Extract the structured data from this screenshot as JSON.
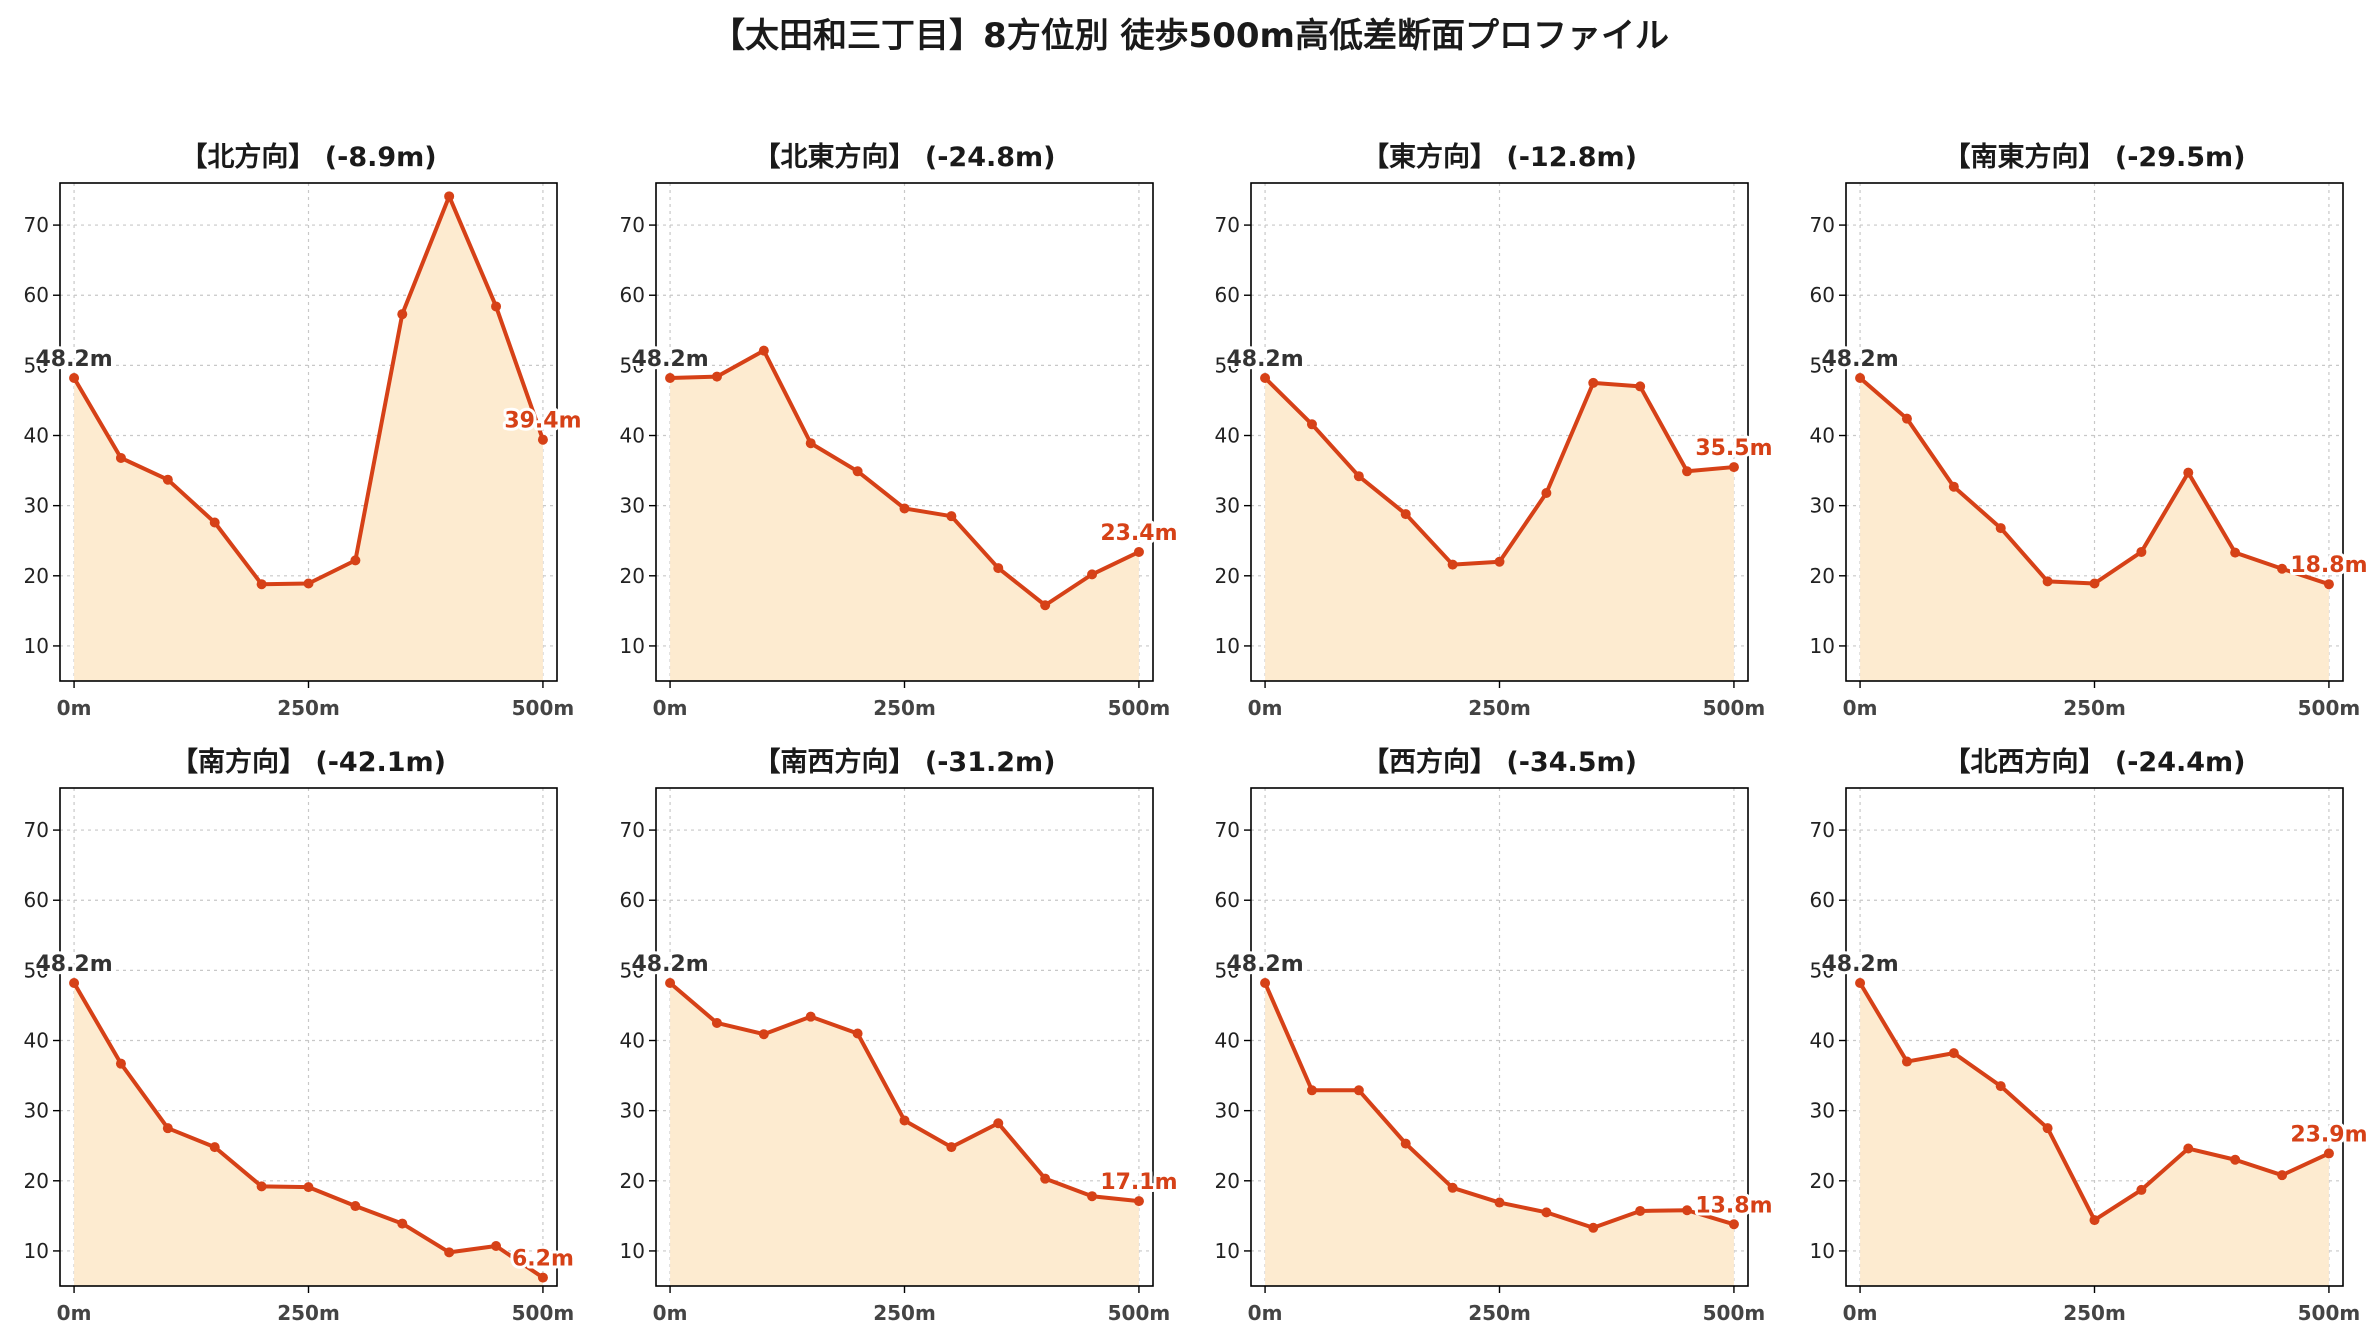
{
  "figure": {
    "title": "【太田和三丁目】8方位別 徒歩500m高低差断面プロファイル"
  },
  "colors": {
    "line": "#d64117",
    "fill": "#fdebd0",
    "grid": "#c8c8c8",
    "start_label": "#333333",
    "end_label": "#d64117"
  },
  "chart_data": [
    {
      "type": "area",
      "title": "【北方向】 (-8.9m)",
      "x": [
        0,
        50,
        100,
        150,
        200,
        250,
        300,
        350,
        400,
        450,
        500
      ],
      "y": [
        48.2,
        36.8,
        33.7,
        27.6,
        18.8,
        18.9,
        22.2,
        57.3,
        74.1,
        58.4,
        39.4
      ],
      "x_ticks": [
        0,
        250,
        500
      ],
      "x_tick_labels": [
        "0m",
        "250m",
        "500m"
      ],
      "y_ticks": [
        10,
        20,
        30,
        40,
        50,
        60,
        70
      ],
      "xlim": [
        -15,
        515
      ],
      "ylim": [
        5,
        76
      ],
      "start_label": "48.2m",
      "end_label": "39.4m",
      "grid": true
    },
    {
      "type": "area",
      "title": "【北東方向】 (-24.8m)",
      "x": [
        0,
        50,
        100,
        150,
        200,
        250,
        300,
        350,
        400,
        450,
        500
      ],
      "y": [
        48.2,
        48.4,
        52.1,
        38.9,
        34.9,
        29.6,
        28.5,
        21.1,
        15.8,
        20.2,
        23.4
      ],
      "x_ticks": [
        0,
        250,
        500
      ],
      "x_tick_labels": [
        "0m",
        "250m",
        "500m"
      ],
      "y_ticks": [
        10,
        20,
        30,
        40,
        50,
        60,
        70
      ],
      "xlim": [
        -15,
        515
      ],
      "ylim": [
        5,
        76
      ],
      "start_label": "48.2m",
      "end_label": "23.4m",
      "grid": true
    },
    {
      "type": "area",
      "title": "【東方向】 (-12.8m)",
      "x": [
        0,
        50,
        100,
        150,
        200,
        250,
        300,
        350,
        400,
        450,
        500
      ],
      "y": [
        48.2,
        41.6,
        34.2,
        28.8,
        21.6,
        22.0,
        31.8,
        47.5,
        47.0,
        34.9,
        35.5
      ],
      "x_ticks": [
        0,
        250,
        500
      ],
      "x_tick_labels": [
        "0m",
        "250m",
        "500m"
      ],
      "y_ticks": [
        10,
        20,
        30,
        40,
        50,
        60,
        70
      ],
      "xlim": [
        -15,
        515
      ],
      "ylim": [
        5,
        76
      ],
      "start_label": "48.2m",
      "end_label": "35.5m",
      "grid": true
    },
    {
      "type": "area",
      "title": "【南東方向】 (-29.5m)",
      "x": [
        0,
        50,
        100,
        150,
        200,
        250,
        300,
        350,
        400,
        450,
        500
      ],
      "y": [
        48.2,
        42.4,
        32.7,
        26.8,
        19.2,
        18.9,
        23.4,
        34.7,
        23.3,
        21.0,
        18.8
      ],
      "x_ticks": [
        0,
        250,
        500
      ],
      "x_tick_labels": [
        "0m",
        "250m",
        "500m"
      ],
      "y_ticks": [
        10,
        20,
        30,
        40,
        50,
        60,
        70
      ],
      "xlim": [
        -15,
        515
      ],
      "ylim": [
        5,
        76
      ],
      "start_label": "48.2m",
      "end_label": "18.8m",
      "grid": true
    },
    {
      "type": "area",
      "title": "【南方向】 (-42.1m)",
      "x": [
        0,
        50,
        100,
        150,
        200,
        250,
        300,
        350,
        400,
        450,
        500
      ],
      "y": [
        48.2,
        36.7,
        27.5,
        24.8,
        19.2,
        19.1,
        16.4,
        13.9,
        9.8,
        10.7,
        6.2
      ],
      "x_ticks": [
        0,
        250,
        500
      ],
      "x_tick_labels": [
        "0m",
        "250m",
        "500m"
      ],
      "y_ticks": [
        10,
        20,
        30,
        40,
        50,
        60,
        70
      ],
      "xlim": [
        -15,
        515
      ],
      "ylim": [
        5,
        76
      ],
      "start_label": "48.2m",
      "end_label": "6.2m",
      "grid": true
    },
    {
      "type": "area",
      "title": "【南西方向】 (-31.2m)",
      "x": [
        0,
        50,
        100,
        150,
        200,
        250,
        300,
        350,
        400,
        450,
        500
      ],
      "y": [
        48.2,
        42.5,
        40.9,
        43.4,
        41.0,
        28.6,
        24.8,
        28.2,
        20.3,
        17.8,
        17.1
      ],
      "x_ticks": [
        0,
        250,
        500
      ],
      "x_tick_labels": [
        "0m",
        "250m",
        "500m"
      ],
      "y_ticks": [
        10,
        20,
        30,
        40,
        50,
        60,
        70
      ],
      "xlim": [
        -15,
        515
      ],
      "ylim": [
        5,
        76
      ],
      "start_label": "48.2m",
      "end_label": "17.1m",
      "grid": true
    },
    {
      "type": "area",
      "title": "【西方向】 (-34.5m)",
      "x": [
        0,
        50,
        100,
        150,
        200,
        250,
        300,
        350,
        400,
        450,
        500
      ],
      "y": [
        48.2,
        32.9,
        32.9,
        25.3,
        19.0,
        16.9,
        15.5,
        13.3,
        15.7,
        15.8,
        13.8
      ],
      "x_ticks": [
        0,
        250,
        500
      ],
      "x_tick_labels": [
        "0m",
        "250m",
        "500m"
      ],
      "y_ticks": [
        10,
        20,
        30,
        40,
        50,
        60,
        70
      ],
      "xlim": [
        -15,
        515
      ],
      "ylim": [
        5,
        76
      ],
      "start_label": "48.2m",
      "end_label": "13.8m",
      "grid": true
    },
    {
      "type": "area",
      "title": "【北西方向】 (-24.4m)",
      "x": [
        0,
        50,
        100,
        150,
        200,
        250,
        300,
        350,
        400,
        450,
        500
      ],
      "y": [
        48.2,
        37.0,
        38.2,
        33.5,
        27.5,
        14.4,
        18.7,
        24.6,
        23.0,
        20.8,
        23.9
      ],
      "x_ticks": [
        0,
        250,
        500
      ],
      "x_tick_labels": [
        "0m",
        "250m",
        "500m"
      ],
      "y_ticks": [
        10,
        20,
        30,
        40,
        50,
        60,
        70
      ],
      "xlim": [
        -15,
        515
      ],
      "ylim": [
        5,
        76
      ],
      "start_label": "48.2m",
      "end_label": "23.9m",
      "grid": true
    }
  ]
}
